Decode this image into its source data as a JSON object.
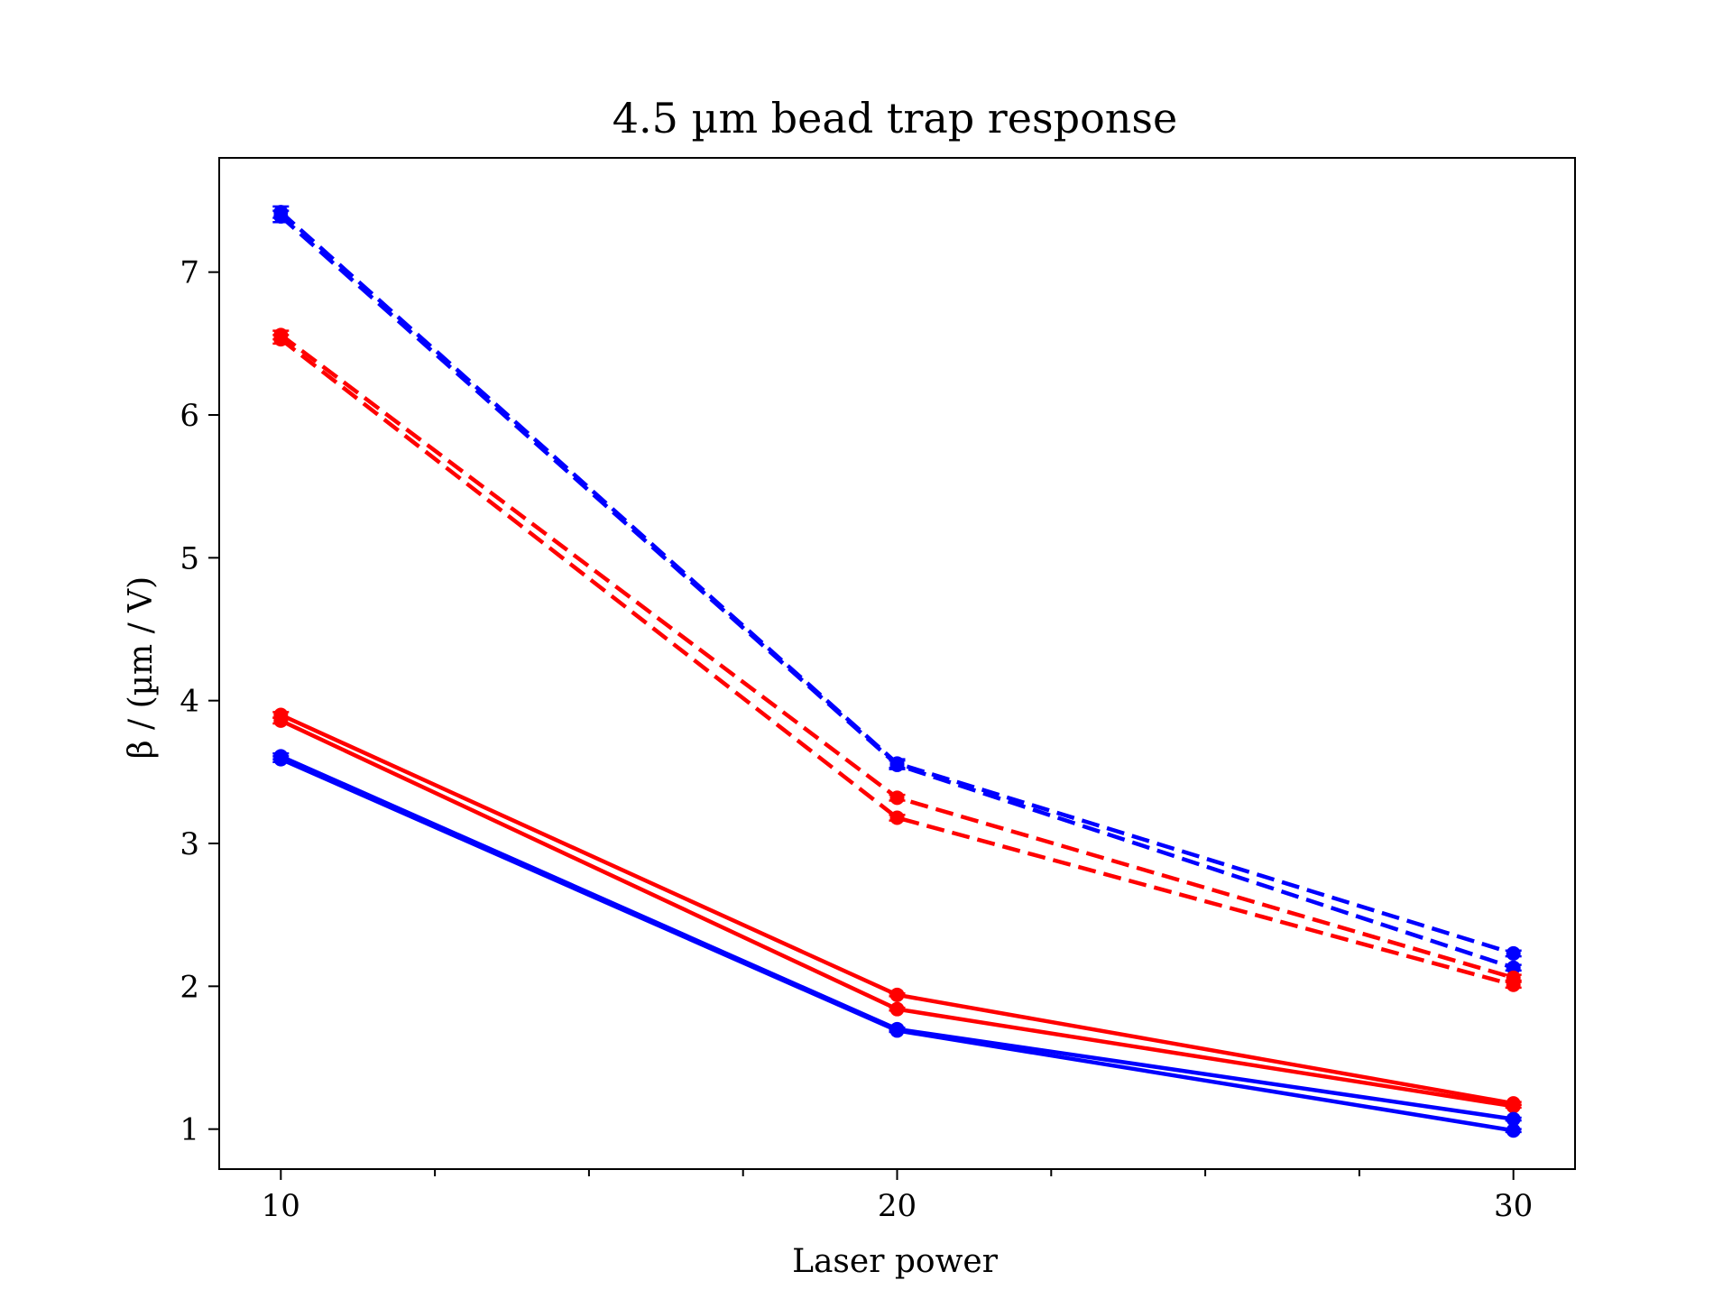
{
  "chart_data": {
    "type": "line",
    "title": "4.5 µm bead trap response",
    "xlabel": "Laser power",
    "ylabel": "β / (µm / V)",
    "xlim": [
      9,
      31
    ],
    "ylim": [
      0.72,
      7.8
    ],
    "x": [
      10,
      20,
      30
    ],
    "x_ticks": [
      10,
      20,
      30
    ],
    "x_tick_labels": [
      "10",
      "20",
      "30"
    ],
    "x_minor_ticks": [
      12.5,
      15,
      17.5,
      22.5,
      25,
      27.5
    ],
    "y_ticks": [
      1,
      2,
      3,
      4,
      5,
      6,
      7
    ],
    "y_tick_labels": [
      "1",
      "2",
      "3",
      "4",
      "5",
      "6",
      "7"
    ],
    "grid": false,
    "colors": {
      "red": "#ff0000",
      "blue": "#0000ff"
    },
    "series": [
      {
        "color": "#0000ff",
        "linestyle": "dashed",
        "values": [
          7.42,
          3.56,
          2.23
        ],
        "errors": [
          0.04,
          0.03,
          0.02
        ]
      },
      {
        "color": "#0000ff",
        "linestyle": "dashed",
        "values": [
          7.39,
          3.55,
          2.13
        ],
        "errors": [
          0.04,
          0.03,
          0.02
        ]
      },
      {
        "color": "#ff0000",
        "linestyle": "dashed",
        "values": [
          6.56,
          3.32,
          2.06
        ],
        "errors": [
          0.03,
          0.02,
          0.02
        ]
      },
      {
        "color": "#ff0000",
        "linestyle": "dashed",
        "values": [
          6.53,
          3.18,
          2.01
        ],
        "errors": [
          0.03,
          0.02,
          0.02
        ]
      },
      {
        "color": "#ff0000",
        "linestyle": "solid",
        "values": [
          3.9,
          1.94,
          1.18
        ],
        "errors": [
          0.02,
          0.01,
          0.01
        ]
      },
      {
        "color": "#ff0000",
        "linestyle": "solid",
        "values": [
          3.86,
          1.84,
          1.16
        ],
        "errors": [
          0.02,
          0.01,
          0.01
        ]
      },
      {
        "color": "#0000ff",
        "linestyle": "solid",
        "values": [
          3.61,
          1.7,
          1.07
        ],
        "errors": [
          0.02,
          0.01,
          0.01
        ]
      },
      {
        "color": "#0000ff",
        "linestyle": "solid",
        "values": [
          3.59,
          1.69,
          0.99
        ],
        "errors": [
          0.02,
          0.01,
          0.01
        ]
      }
    ]
  }
}
